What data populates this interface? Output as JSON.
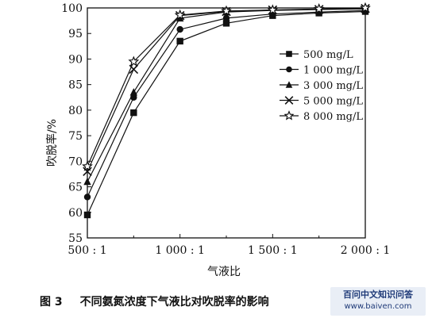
{
  "chart_data": {
    "type": "line",
    "xlabel": "气液比",
    "ylabel": "吹脱率/%",
    "x_ticks": [
      "500 : 1",
      "1 000 : 1",
      "1 500 : 1",
      "2 000 : 1"
    ],
    "x_tick_values": [
      500,
      1000,
      1500,
      2000
    ],
    "xlim": [
      500,
      2000
    ],
    "ylim": [
      55,
      100
    ],
    "y_ticks": [
      55,
      60,
      65,
      70,
      75,
      80,
      85,
      90,
      95,
      100
    ],
    "grid": false,
    "legend_position": "right",
    "x": [
      500,
      750,
      1000,
      1250,
      1500,
      1750,
      2000
    ],
    "series": [
      {
        "name": "500 mg/L",
        "marker": "square",
        "values": [
          59.5,
          79.5,
          93.5,
          97.0,
          98.5,
          99.0,
          99.3
        ]
      },
      {
        "name": "1 000 mg/L",
        "marker": "circle",
        "values": [
          63.0,
          82.5,
          95.8,
          98.0,
          98.8,
          99.2,
          99.5
        ]
      },
      {
        "name": "3 000 mg/L",
        "marker": "triangle",
        "values": [
          66.0,
          83.5,
          98.0,
          99.2,
          99.5,
          99.7,
          99.8
        ]
      },
      {
        "name": "5 000 mg/L",
        "marker": "x",
        "values": [
          68.0,
          88.0,
          98.5,
          99.3,
          99.6,
          99.7,
          99.9
        ]
      },
      {
        "name": "8 000 mg/L",
        "marker": "star",
        "values": [
          69.0,
          89.5,
          98.6,
          99.4,
          99.6,
          99.8,
          100.0
        ]
      }
    ]
  },
  "caption": {
    "fig_no": "图 3",
    "title": "不同氨氮浓度下气液比对吹脱率的影响"
  },
  "watermark": {
    "line1": "百问中文知识问答",
    "line2": "www.baiven.com"
  }
}
